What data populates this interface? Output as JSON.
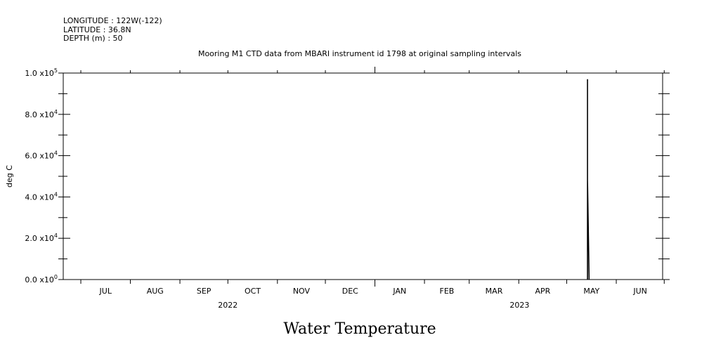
{
  "header": {
    "longitude": "LONGITUDE : 122W(-122)",
    "latitude": "LATITUDE : 36.8N",
    "depth": "DEPTH (m) : 50"
  },
  "chart_data": {
    "type": "line",
    "title": "Mooring M1 CTD data from MBARI instrument id 1798 at original sampling intervals",
    "ylabel": "deg C",
    "xlabel": "Water Temperature",
    "ylim": [
      0,
      100000
    ],
    "yticks": [
      {
        "value": 0,
        "mantissa": "0.0",
        "exp": "0"
      },
      {
        "value": 20000,
        "mantissa": "2.0",
        "exp": "4"
      },
      {
        "value": 40000,
        "mantissa": "4.0",
        "exp": "4"
      },
      {
        "value": 60000,
        "mantissa": "6.0",
        "exp": "4"
      },
      {
        "value": 80000,
        "mantissa": "8.0",
        "exp": "4"
      },
      {
        "value": 100000,
        "mantissa": "1.0",
        "exp": "5"
      }
    ],
    "xlim": [
      "2022-06-20",
      "2023-06-30"
    ],
    "months": [
      "JUL",
      "AUG",
      "SEP",
      "OCT",
      "NOV",
      "DEC",
      "JAN",
      "FEB",
      "MAR",
      "APR",
      "MAY",
      "JUN"
    ],
    "years": [
      "2022",
      "2023"
    ],
    "grid": false,
    "series": [
      {
        "x": [
          "2023-05-14",
          "2023-05-14",
          "2023-05-14",
          "2023-05-15"
        ],
        "y": [
          0,
          97000,
          48000,
          0
        ]
      }
    ]
  }
}
